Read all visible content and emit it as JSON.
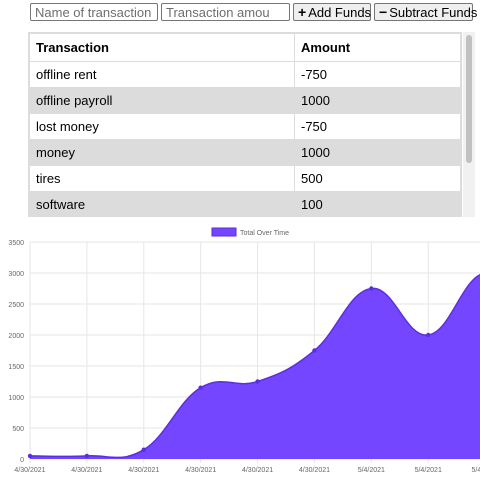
{
  "form": {
    "name_placeholder": "Name of transaction",
    "amount_placeholder": "Transaction amount",
    "add_label": "Add Funds",
    "subtract_label": "Subtract Funds"
  },
  "table": {
    "headers": [
      "Transaction",
      "Amount"
    ],
    "rows": [
      {
        "name": "offline rent",
        "amount": "-750"
      },
      {
        "name": "offline payroll",
        "amount": "1000"
      },
      {
        "name": "lost money",
        "amount": "-750"
      },
      {
        "name": "money",
        "amount": "1000"
      },
      {
        "name": "tires",
        "amount": "500"
      },
      {
        "name": "software",
        "amount": "100"
      }
    ]
  },
  "colors": {
    "series_fill": "#7446ff",
    "series_line": "#5a2fe0",
    "row_alt": "#dcdcdc"
  },
  "chart_data": {
    "type": "area",
    "title": "",
    "legend": "top",
    "grid": true,
    "series": [
      {
        "name": "Total Over Time",
        "values": [
          50,
          50,
          150,
          1150,
          1250,
          1750,
          2750,
          2000,
          3000,
          2250
        ]
      }
    ],
    "x": [
      "4/30/2021",
      "4/30/2021",
      "4/30/2021",
      "4/30/2021",
      "4/30/2021",
      "4/30/2021",
      "5/4/2021",
      "5/4/2021",
      "5/4/2021",
      "5/4/2021"
    ],
    "ylim": [
      0,
      3500
    ],
    "yticks": [
      0,
      500,
      1000,
      1500,
      2000,
      2500,
      3000,
      3500
    ]
  }
}
